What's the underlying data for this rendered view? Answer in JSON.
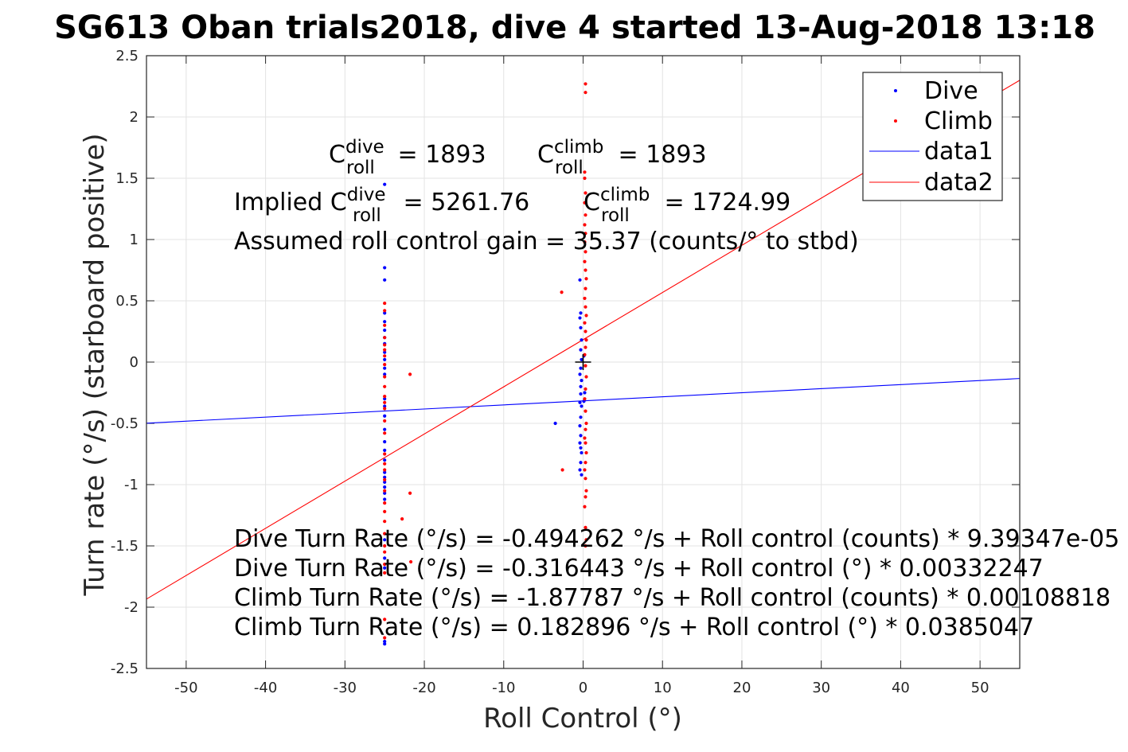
{
  "chart_data": {
    "type": "scatter",
    "title": "SG613 Oban trials2018, dive 4 started 13-Aug-2018 13:18",
    "xlabel": "Roll Control (°)",
    "ylabel": "Turn rate (°/s) (starboard positive)",
    "xlim": [
      -55,
      55
    ],
    "ylim": [
      -2.5,
      2.5
    ],
    "grid": true,
    "legend_position": "top-right",
    "x_ticks": [
      "-50",
      "-40",
      "-30",
      "-20",
      "-10",
      "0",
      "10",
      "20",
      "30",
      "40",
      "50"
    ],
    "y_ticks": [
      "2.5",
      "2",
      "1.5",
      "1",
      "0.5",
      "0",
      "-0.5",
      "-1",
      "-1.5",
      "-2",
      "-2.5"
    ],
    "series": [
      {
        "name": "Dive",
        "color": "#0000ff",
        "marker": "dot",
        "points": [
          [
            -25,
            1.45
          ],
          [
            -25,
            0.77
          ],
          [
            -25,
            0.67
          ],
          [
            -25,
            0.4
          ],
          [
            -25,
            0.33
          ],
          [
            -25,
            0.26
          ],
          [
            -25,
            0.2
          ],
          [
            -25,
            0.15
          ],
          [
            -25,
            0.08
          ],
          [
            -25,
            0.02
          ],
          [
            -25,
            -0.05
          ],
          [
            -25,
            -0.1
          ],
          [
            -25,
            -0.3
          ],
          [
            -25,
            -0.36
          ],
          [
            -25,
            -0.44
          ],
          [
            -25,
            -0.55
          ],
          [
            -25,
            -0.65
          ],
          [
            -25,
            -0.72
          ],
          [
            -25,
            -0.8
          ],
          [
            -25,
            -0.9
          ],
          [
            -25,
            -0.94
          ],
          [
            -25,
            -0.98
          ],
          [
            -25,
            -1.02
          ],
          [
            -25,
            -1.07
          ],
          [
            -25,
            -1.12
          ],
          [
            -25,
            -1.45
          ],
          [
            -25,
            -1.6
          ],
          [
            -25,
            -1.68
          ],
          [
            -25,
            -2.28
          ],
          [
            -25,
            -2.3
          ],
          [
            -3.5,
            -0.5
          ],
          [
            -0.4,
            0.67
          ],
          [
            -0.3,
            0.4
          ],
          [
            -0.4,
            0.36
          ],
          [
            -0.3,
            0.28
          ],
          [
            -0.2,
            0.18
          ],
          [
            -0.3,
            0.1
          ],
          [
            -0.2,
            0.02
          ],
          [
            -0.3,
            -0.05
          ],
          [
            -0.4,
            -0.1
          ],
          [
            -0.2,
            -0.15
          ],
          [
            -0.3,
            -0.2
          ],
          [
            -0.3,
            -0.26
          ],
          [
            -0.4,
            -0.33
          ],
          [
            -0.2,
            -0.36
          ],
          [
            -0.3,
            -0.45
          ],
          [
            -0.4,
            -0.52
          ],
          [
            -0.3,
            -0.6
          ],
          [
            -0.4,
            -0.66
          ],
          [
            -0.3,
            -0.7
          ],
          [
            -0.2,
            -0.74
          ],
          [
            -0.3,
            -0.82
          ],
          [
            -0.4,
            -0.88
          ],
          [
            -0.2,
            -0.92
          ],
          [
            0.1,
            -0.32
          ],
          [
            0.1,
            0.05
          ],
          [
            0.2,
            -0.25
          ]
        ]
      },
      {
        "name": "Climb",
        "color": "#ff0000",
        "marker": "dot",
        "points": [
          [
            -25,
            0.48
          ],
          [
            -25,
            0.42
          ],
          [
            -25,
            0.3
          ],
          [
            -25,
            0.2
          ],
          [
            -25,
            0.14
          ],
          [
            -25,
            0.1
          ],
          [
            -25,
            0.05
          ],
          [
            -25,
            -0.02
          ],
          [
            -25,
            -0.12
          ],
          [
            -25,
            -0.2
          ],
          [
            -25,
            -0.28
          ],
          [
            -25,
            -0.33
          ],
          [
            -25,
            -0.38
          ],
          [
            -25,
            -0.48
          ],
          [
            -25,
            -0.58
          ],
          [
            -25,
            -0.75
          ],
          [
            -25,
            -0.83
          ],
          [
            -25,
            -0.88
          ],
          [
            -25,
            -0.96
          ],
          [
            -25,
            -1.05
          ],
          [
            -25,
            -1.15
          ],
          [
            -25,
            -1.22
          ],
          [
            -25,
            -1.3
          ],
          [
            -25,
            -1.4
          ],
          [
            -25,
            -1.5
          ],
          [
            -25,
            -1.55
          ],
          [
            -25,
            -1.65
          ],
          [
            -25,
            -1.72
          ],
          [
            -25,
            -2.1
          ],
          [
            -25,
            -2.25
          ],
          [
            -21.8,
            -0.1
          ],
          [
            -21.8,
            -1.07
          ],
          [
            -22.8,
            -1.28
          ],
          [
            -21.7,
            -1.63
          ],
          [
            -2.7,
            0.57
          ],
          [
            -2.6,
            -0.88
          ],
          [
            0.3,
            2.27
          ],
          [
            0.3,
            2.2
          ],
          [
            0.2,
            1.55
          ],
          [
            0.2,
            1.5
          ],
          [
            0.3,
            1.38
          ],
          [
            0.2,
            1.3
          ],
          [
            0.3,
            1.2
          ],
          [
            0.2,
            1.12
          ],
          [
            0.3,
            1.05
          ],
          [
            0.2,
            0.98
          ],
          [
            0.3,
            0.9
          ],
          [
            0.2,
            0.82
          ],
          [
            0.3,
            0.75
          ],
          [
            0.4,
            0.68
          ],
          [
            0.3,
            0.6
          ],
          [
            0.2,
            0.52
          ],
          [
            0.3,
            0.45
          ],
          [
            0.4,
            0.38
          ],
          [
            0.2,
            0.32
          ],
          [
            0.3,
            0.25
          ],
          [
            0.4,
            0.18
          ],
          [
            0.3,
            0.12
          ],
          [
            0.2,
            0.06
          ],
          [
            0.3,
            -0.03
          ],
          [
            0.4,
            -0.12
          ],
          [
            0.3,
            -0.22
          ],
          [
            0.2,
            -0.3
          ],
          [
            0.3,
            -0.4
          ],
          [
            0.4,
            -0.5
          ],
          [
            0.3,
            -0.55
          ],
          [
            0.2,
            -0.62
          ],
          [
            0.3,
            -0.66
          ],
          [
            0.4,
            -0.74
          ],
          [
            0.3,
            -0.82
          ],
          [
            0.2,
            -0.88
          ],
          [
            0.3,
            -0.95
          ],
          [
            0.4,
            -1.05
          ],
          [
            0.3,
            -1.1
          ],
          [
            0.2,
            -1.18
          ],
          [
            0.3,
            -1.35
          ],
          [
            0.4,
            -1.45
          ],
          [
            0.3,
            -1.5
          ]
        ]
      },
      {
        "name": "data1",
        "color": "#0000ff",
        "marker": "line",
        "points": [
          [
            -55,
            -0.499
          ],
          [
            55,
            -0.134
          ]
        ]
      },
      {
        "name": "data2",
        "color": "#ff0000",
        "marker": "line",
        "points": [
          [
            -55,
            -1.934
          ],
          [
            55,
            2.3
          ]
        ]
      }
    ],
    "origin_marker": [
      0,
      0
    ],
    "annotations": {
      "c_dive": {
        "C": "C",
        "sup": "dive",
        "sub": "roll",
        "rest": " = 1893"
      },
      "c_climb": {
        "C": "C",
        "sup": "climb",
        "sub": "roll",
        "rest": " = 1893"
      },
      "implied_dive": {
        "pre": "Implied C",
        "sup": "dive",
        "sub": "roll",
        "rest": " = 5261.76"
      },
      "implied_climb": {
        "C": "C",
        "sup": "climb",
        "sub": "roll",
        "rest": " = 1724.99"
      },
      "gain": "Assumed roll control gain = 35.37 (counts/° to stbd)",
      "eq1": "Dive Turn Rate (°/s) = -0.494262 °/s + Roll control (counts) * 9.39347e-05",
      "eq2": "Dive Turn Rate (°/s) = -0.316443 °/s + Roll control (°) * 0.00332247",
      "eq3": "Climb Turn Rate (°/s) = -1.87787 °/s + Roll control (counts) * 0.00108818",
      "eq4": "Climb Turn Rate (°/s) = 0.182896 °/s + Roll control (°) * 0.0385047"
    }
  }
}
